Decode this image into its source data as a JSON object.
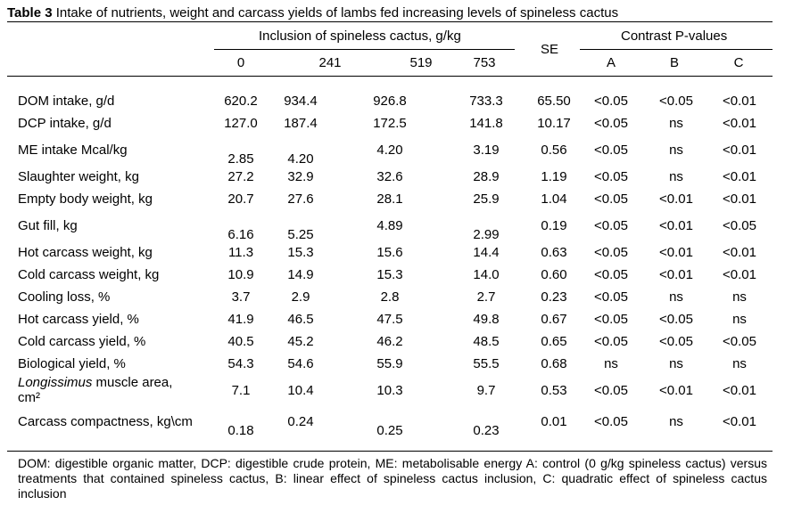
{
  "table": {
    "label": "Table 3",
    "caption": "Intake of nutrients, weight and carcass yields of lambs fed increasing levels of spineless cactus",
    "inclusion_header": "Inclusion of spineless cactus, g/kg",
    "levels": [
      "0",
      "241",
      "519",
      "753"
    ],
    "se_header": "SE",
    "contrast_header": "Contrast P-values",
    "contrasts": [
      "A",
      "B",
      "C"
    ],
    "rows": [
      {
        "label": "DOM intake, g/d",
        "values": [
          "620.2",
          "934.4",
          "926.8",
          "733.3"
        ],
        "se": "65.50",
        "p": [
          "<0.05",
          "<0.05",
          "<0.01"
        ]
      },
      {
        "label": "DCP intake, g/d",
        "values": [
          "127.0",
          "187.4",
          "172.5",
          "141.8"
        ],
        "se": "10.17",
        "p": [
          "<0.05",
          "ns",
          "<0.01"
        ]
      },
      {
        "label": "ME intake Mcal/kg",
        "values": [
          "2.85",
          "4.20",
          "4.20",
          "3.19"
        ],
        "se": "0.56",
        "p": [
          "<0.05",
          "ns",
          "<0.01"
        ]
      },
      {
        "label": "Slaughter weight, kg",
        "values": [
          "27.2",
          "32.9",
          "32.6",
          "28.9"
        ],
        "se": "1.19",
        "p": [
          "<0.05",
          "ns",
          "<0.01"
        ]
      },
      {
        "label": "Empty body weight, kg",
        "values": [
          "20.7",
          "27.6",
          "28.1",
          "25.9"
        ],
        "se": "1.04",
        "p": [
          "<0.05",
          "<0.01",
          "<0.01"
        ]
      },
      {
        "label": "Gut fill, kg",
        "values": [
          "6.16",
          "5.25",
          "4.89",
          "2.99"
        ],
        "se": "0.19",
        "p": [
          "<0.05",
          "<0.01",
          "<0.05"
        ]
      },
      {
        "label": "Hot carcass weight, kg",
        "values": [
          "11.3",
          "15.3",
          "15.6",
          "14.4"
        ],
        "se": "0.63",
        "p": [
          "<0.05",
          "<0.01",
          "<0.01"
        ]
      },
      {
        "label": "Cold carcass weight, kg",
        "values": [
          "10.9",
          "14.9",
          "15.3",
          "14.0"
        ],
        "se": "0.60",
        "p": [
          "<0.05",
          "<0.01",
          "<0.01"
        ]
      },
      {
        "label": "Cooling loss, %",
        "values": [
          "3.7",
          "2.9",
          "2.8",
          "2.7"
        ],
        "se": "0.23",
        "p": [
          "<0.05",
          "ns",
          "ns"
        ]
      },
      {
        "label": "Hot carcass yield, %",
        "values": [
          "41.9",
          "46.5",
          "47.5",
          "49.8"
        ],
        "se": "0.67",
        "p": [
          "<0.05",
          "<0.05",
          "ns"
        ]
      },
      {
        "label": "Cold carcass yield, %",
        "values": [
          "40.5",
          "45.2",
          "46.2",
          "48.5"
        ],
        "se": "0.65",
        "p": [
          "<0.05",
          "<0.05",
          "<0.05"
        ]
      },
      {
        "label": "Biological yield, %",
        "values": [
          "54.3",
          "54.6",
          "55.9",
          "55.5"
        ],
        "se": "0.68",
        "p": [
          "ns",
          "ns",
          "ns"
        ]
      },
      {
        "label_italic": "Longissimus",
        "label_rest": " muscle area,",
        "label_line2": "cm²",
        "values": [
          "7.1",
          "10.4",
          "10.3",
          "9.7"
        ],
        "se": "0.53",
        "p": [
          "<0.05",
          "<0.01",
          "<0.01"
        ]
      },
      {
        "label": "Carcass compactness, kg\\cm",
        "values": [
          "0.18",
          "0.24",
          "0.25",
          "0.23"
        ],
        "se": "0.01",
        "p": [
          "<0.05",
          "ns",
          "<0.01"
        ]
      }
    ],
    "footnote": "DOM: digestible organic matter, DCP: digestible crude protein, ME: metabolisable energy A: control (0 g/kg spineless cactus) versus treatments that contained spineless cactus, B: linear effect of spineless cactus inclusion, C: quadratic effect of spineless cactus inclusion"
  }
}
